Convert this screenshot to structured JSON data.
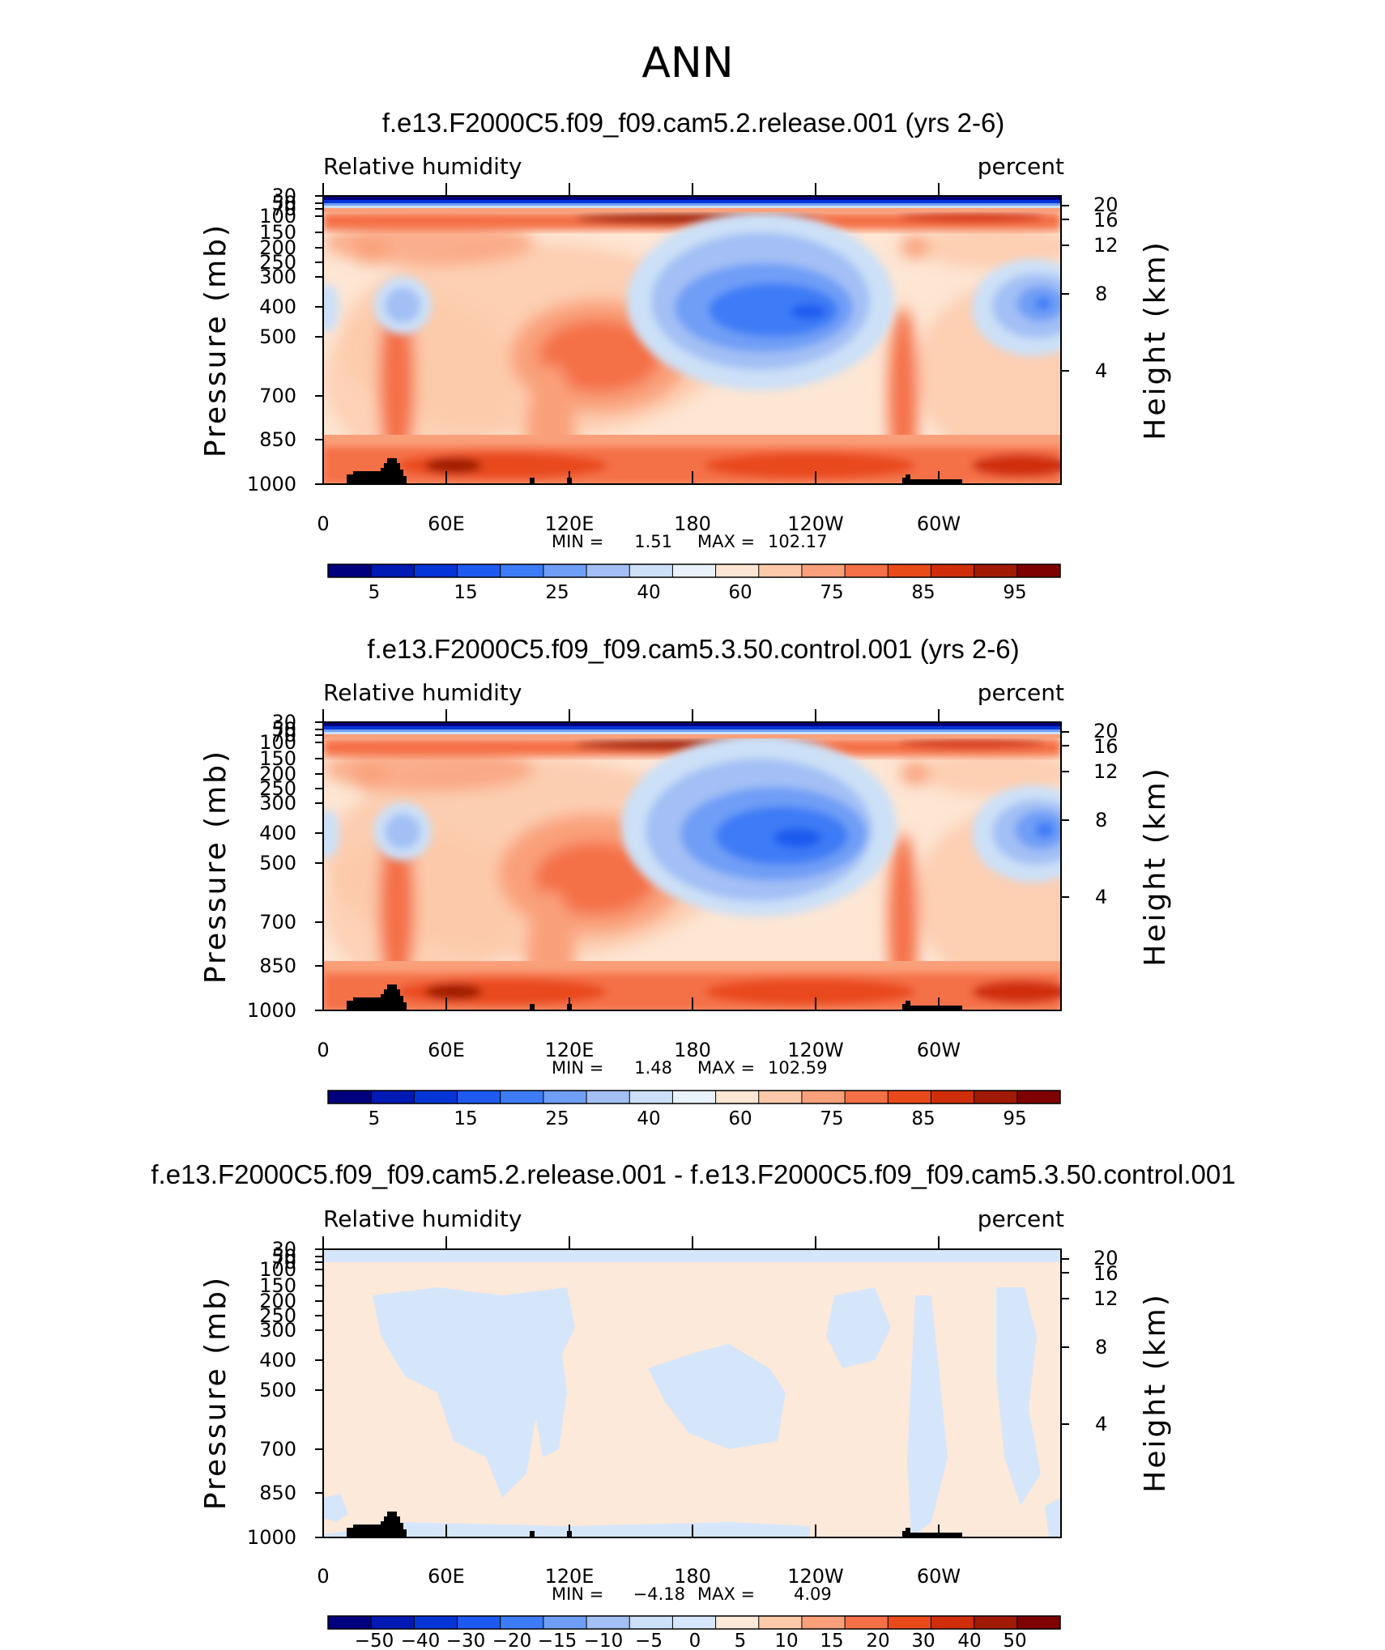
{
  "figure": {
    "title": "ANN",
    "colors": {
      "abs_scale": [
        "#00007f",
        "#001ab3",
        "#0535d6",
        "#1e5aef",
        "#3d7cf6",
        "#6f9ef6",
        "#a3bff5",
        "#cce0f7",
        "#e9f2fa",
        "#fde6d4",
        "#fcc9aa",
        "#f9a07a",
        "#f47046",
        "#e94a1a",
        "#d02e0b",
        "#a11a05",
        "#7f0000"
      ],
      "diff_scale": [
        "#00007f",
        "#001ab3",
        "#0535d6",
        "#1e5aef",
        "#3d7cf6",
        "#6f9ef6",
        "#a3bff5",
        "#cce0f7",
        "#d6e6fa",
        "#fde9d9",
        "#fcc9aa",
        "#f9a07a",
        "#f47046",
        "#e94a1a",
        "#d02e0b",
        "#a11a05",
        "#7f0000"
      ],
      "topography": "#000000"
    }
  },
  "panels": [
    {
      "case_title": "f.e13.F2000C5.f09_f09.cam5.2.release.001 (yrs 2-6)",
      "variable": "Relative humidity",
      "units": "percent",
      "ylabel": "Pressure (mb)",
      "y2label": "Height (km)",
      "min_label": "MIN =",
      "min_value": "1.51",
      "max_label": "MAX =",
      "max_value": "102.17",
      "colorbar_labels": [
        "5",
        "15",
        "25",
        "40",
        "60",
        "75",
        "85",
        "95"
      ]
    },
    {
      "case_title": "f.e13.F2000C5.f09_f09.cam5.3.50.control.001 (yrs 2-6)",
      "variable": "Relative humidity",
      "units": "percent",
      "ylabel": "Pressure (mb)",
      "y2label": "Height (km)",
      "min_label": "MIN =",
      "min_value": "1.48",
      "max_label": "MAX =",
      "max_value": "102.59",
      "colorbar_labels": [
        "5",
        "15",
        "25",
        "40",
        "60",
        "75",
        "85",
        "95"
      ]
    },
    {
      "case_title": "f.e13.F2000C5.f09_f09.cam5.2.release.001 - f.e13.F2000C5.f09_f09.cam5.3.50.control.001",
      "variable": "Relative humidity",
      "units": "percent",
      "ylabel": "Pressure (mb)",
      "y2label": "Height (km)",
      "min_label": "MIN =",
      "min_value": "−4.18",
      "max_label": "MAX =",
      "max_value": "4.09",
      "colorbar_labels": [
        "−50",
        "−40",
        "−30",
        "−20",
        "−15",
        "−10",
        "−5",
        "0",
        "5",
        "10",
        "15",
        "20",
        "30",
        "40",
        "50"
      ]
    }
  ],
  "chart_data": [
    {
      "type": "heatmap",
      "title": "f.e13.F2000C5.f09_f09.cam5.2.release.001 (yrs 2-6)",
      "x_ticks": [
        "0",
        "60E",
        "120E",
        "180",
        "120W",
        "60W"
      ],
      "y_ticks": [
        "30",
        "50",
        "70",
        "100",
        "150",
        "200",
        "250",
        "300",
        "400",
        "500",
        "700",
        "850",
        "1000"
      ],
      "y2_ticks": [
        "20",
        "16",
        "12",
        "8",
        "4"
      ],
      "xlim": [
        0,
        360
      ],
      "ylim_mb": [
        1000,
        30
      ],
      "levels": [
        5,
        10,
        15,
        20,
        25,
        30,
        40,
        50,
        60,
        70,
        75,
        80,
        85,
        90,
        95,
        100
      ],
      "min": 1.51,
      "max": 102.17,
      "features": [
        {
          "kind": "dry_minimum",
          "lon": 234,
          "p": 400,
          "value": 10
        },
        {
          "kind": "dry_minimum",
          "lon": 345,
          "p": 400,
          "value": 15
        },
        {
          "kind": "dry_minimum",
          "lon": 37,
          "p": 400,
          "value": 30
        },
        {
          "kind": "moist_maximum",
          "lon": 135,
          "p": 550,
          "value": 88
        },
        {
          "kind": "moist_band",
          "p": 950,
          "value": 92
        }
      ]
    },
    {
      "type": "heatmap",
      "title": "f.e13.F2000C5.f09_f09.cam5.3.50.control.001 (yrs 2-6)",
      "x_ticks": [
        "0",
        "60E",
        "120E",
        "180",
        "120W",
        "60W"
      ],
      "y_ticks": [
        "30",
        "50",
        "70",
        "100",
        "150",
        "200",
        "250",
        "300",
        "400",
        "500",
        "700",
        "850",
        "1000"
      ],
      "y2_ticks": [
        "20",
        "16",
        "12",
        "8",
        "4"
      ],
      "xlim": [
        0,
        360
      ],
      "ylim_mb": [
        1000,
        30
      ],
      "levels": [
        5,
        10,
        15,
        20,
        25,
        30,
        40,
        50,
        60,
        70,
        75,
        80,
        85,
        90,
        95,
        100
      ],
      "min": 1.48,
      "max": 102.59,
      "features": [
        {
          "kind": "dry_minimum",
          "lon": 232,
          "p": 400,
          "value": 8
        },
        {
          "kind": "dry_minimum",
          "lon": 345,
          "p": 400,
          "value": 12
        },
        {
          "kind": "dry_minimum",
          "lon": 37,
          "p": 400,
          "value": 30
        },
        {
          "kind": "moist_maximum",
          "lon": 135,
          "p": 560,
          "value": 88
        },
        {
          "kind": "moist_band",
          "p": 950,
          "value": 92
        }
      ]
    },
    {
      "type": "heatmap",
      "title": "f.e13.F2000C5.f09_f09.cam5.2.release.001 - f.e13.F2000C5.f09_f09.cam5.3.50.control.001",
      "x_ticks": [
        "0",
        "60E",
        "120E",
        "180",
        "120W",
        "60W"
      ],
      "y_ticks": [
        "30",
        "50",
        "70",
        "100",
        "150",
        "200",
        "250",
        "300",
        "400",
        "500",
        "700",
        "850",
        "1000"
      ],
      "y2_ticks": [
        "20",
        "16",
        "12",
        "8",
        "4"
      ],
      "xlim": [
        0,
        360
      ],
      "ylim_mb": [
        1000,
        30
      ],
      "levels": [
        -50,
        -40,
        -30,
        -20,
        -15,
        -10,
        -5,
        0,
        5,
        10,
        15,
        20,
        30,
        40,
        50
      ],
      "min": -4.18,
      "max": 4.09
    }
  ]
}
